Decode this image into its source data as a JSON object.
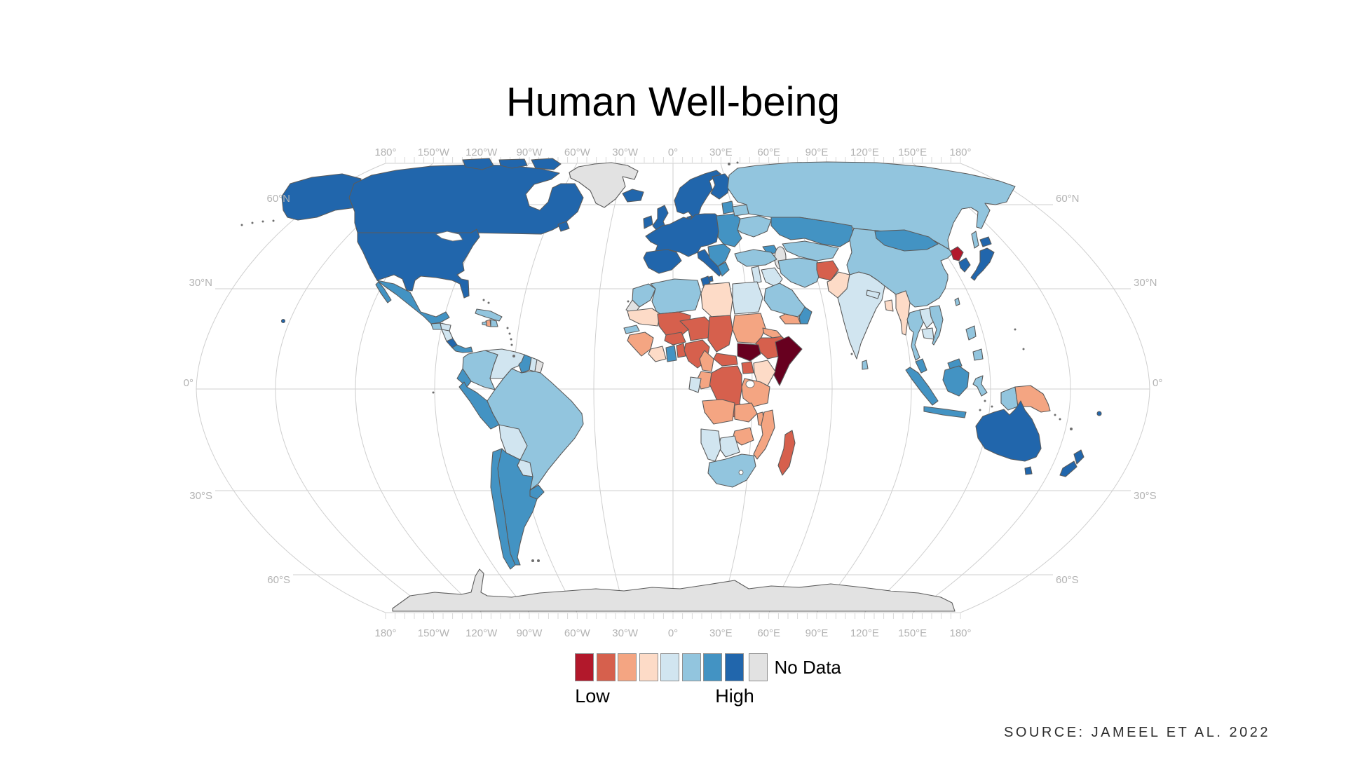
{
  "title": "Human Well-being",
  "source": "SOURCE: JAMEEL ET AL. 2022",
  "legend": {
    "low": "Low",
    "high": "High",
    "no_data": "No Data"
  },
  "palette": {
    "bin1_darkest": "#67001f",
    "bin1": "#b2182b",
    "bin2": "#d6604d",
    "bin3": "#f4a582",
    "bin4": "#fddbc7",
    "bin5": "#d1e5f0",
    "bin6": "#92c5de",
    "bin7": "#4393c3",
    "bin8": "#2166ac",
    "no_data": "#e2e2e2"
  },
  "map": {
    "border_color": "#5b5b5b",
    "graticule_color": "#cfcfcf",
    "axis_label_color": "#b3b3b3"
  },
  "axes": {
    "lon": [
      "180°",
      "150°W",
      "120°W",
      "90°W",
      "60°W",
      "30°W",
      "0°",
      "30°E",
      "60°E",
      "90°E",
      "120°E",
      "150°E",
      "180°"
    ],
    "lat": [
      "60°N",
      "30°N",
      "0°",
      "30°S",
      "60°S"
    ]
  },
  "chart_data": {
    "type": "choropleth",
    "title": "Human Well-being",
    "scale": "diverging 8-class red-to-blue (Low to High) plus No Data gray",
    "legend_order_low_to_high": [
      "bin1",
      "bin2",
      "bin3",
      "bin4",
      "bin5",
      "bin6",
      "bin7",
      "bin8"
    ],
    "regions": {
      "United States": "bin8",
      "Canada": "bin8",
      "Alaska": "bin8",
      "Greenland": "no_data",
      "Mexico": "bin7",
      "Guatemala": "bin6",
      "Honduras": "bin5",
      "Nicaragua": "bin5",
      "Costa Rica": "bin8",
      "Panama": "bin7",
      "Cuba": "bin6",
      "Haiti": "bin3",
      "Dominican Republic": "bin6",
      "Colombia": "bin6",
      "Venezuela": "bin5",
      "Guyana": "bin7",
      "Suriname": "bin5",
      "French Guiana": "no_data",
      "Ecuador": "bin7",
      "Peru": "bin7",
      "Brazil": "bin6",
      "Bolivia": "bin5",
      "Paraguay": "bin5",
      "Chile": "bin7",
      "Argentina": "bin7",
      "Uruguay": "bin7",
      "Iceland": "bin8",
      "United Kingdom": "bin8",
      "Ireland": "bin8",
      "Scandinavia": "bin8",
      "Finland": "bin8",
      "Western Europe": "bin8",
      "Iberia": "bin8",
      "Italy": "bin8",
      "Eastern Europe": "bin7",
      "Balkans": "bin7",
      "Greece": "bin7",
      "Baltic States": "bin7",
      "Belarus": "bin6",
      "Ukraine": "bin6",
      "Russia": "bin6",
      "Kazakhstan": "bin7",
      "Central Asia": "bin6",
      "Caucasus": "bin7",
      "Mongolia": "bin7",
      "China": "bin6",
      "North Korea": "bin1",
      "South Korea": "bin8",
      "Japan": "bin8",
      "Taiwan": "bin6",
      "Turkey": "bin6",
      "Levant": "bin5",
      "Iraq": "bin5",
      "Iran": "bin6",
      "Saudi Arabia": "bin6",
      "Yemen": "bin3",
      "Oman": "bin7",
      "Afghanistan": "bin2",
      "Pakistan": "bin4",
      "India": "bin5",
      "Nepal": "bin5",
      "Bangladesh": "bin4",
      "Sri Lanka": "bin6",
      "Myanmar": "bin4",
      "Thailand": "bin6",
      "Laos": "bin5",
      "Vietnam": "bin6",
      "Cambodia": "bin5",
      "Malaysia": "bin7",
      "Sumatra": "bin7",
      "Borneo": "bin7",
      "Java": "bin7",
      "Sulawesi": "bin6",
      "Philippines": "bin6",
      "West Papua": "bin6",
      "Papua New Guinea": "bin3",
      "Australia": "bin8",
      "New Zealand": "bin8",
      "Fiji": "bin8",
      "Morocco": "bin6",
      "Western Sahara": "no_data",
      "Algeria": "bin6",
      "Tunisia": "bin8",
      "Libya": "bin4",
      "Egypt": "bin5",
      "Mauritania": "bin4",
      "Mali": "bin2",
      "Niger": "bin2",
      "Chad": "bin2",
      "Sudan": "bin3",
      "Eritrea": "bin3",
      "Ethiopia": "bin2",
      "Somalia": "bin1_darkest",
      "South Sudan": "bin1_darkest",
      "Senegal": "bin6",
      "Guinea": "bin3",
      "Ivory Coast": "bin4",
      "Ghana": "bin7",
      "Togo-Benin": "bin2",
      "Burkina Faso": "bin2",
      "Nigeria": "bin2",
      "Cameroon": "bin3",
      "Central African Republic": "bin2",
      "DR Congo": "bin2",
      "Congo": "bin3",
      "Gabon": "bin5",
      "Uganda": "bin2",
      "Kenya": "bin4",
      "Tanzania": "bin3",
      "Angola": "bin3",
      "Zambia": "bin3",
      "Malawi": "bin3",
      "Mozambique": "bin3",
      "Zimbabwe": "bin3",
      "Botswana": "bin5",
      "Namibia": "bin5",
      "South Africa": "bin6",
      "Madagascar": "bin2",
      "Antarctica": "no_data",
      "Caspian Sea": "no_data"
    }
  }
}
